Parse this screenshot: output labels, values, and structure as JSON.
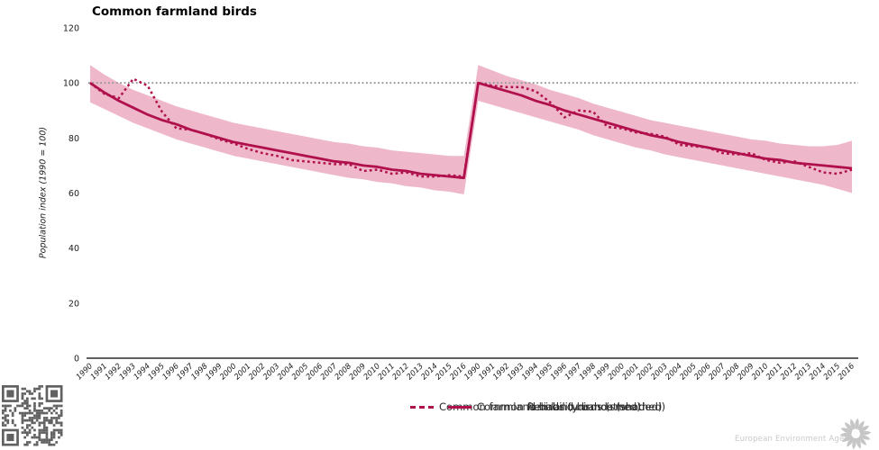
{
  "chart_data": {
    "type": "line",
    "title": "Common farmland birds",
    "xlabel": "",
    "ylabel": "Population index (1990 = 100)",
    "ylim": [
      0,
      120
    ],
    "yticks": [
      0,
      20,
      40,
      60,
      80,
      100,
      120
    ],
    "reference_line": 100,
    "grid": "reference-line-only",
    "legend_position": "bottom-center-overlapping",
    "panels": 2,
    "categories": [
      "1990",
      "1991",
      "1992",
      "1993",
      "1994",
      "1995",
      "1996",
      "1997",
      "1998",
      "1999",
      "2000",
      "2001",
      "2002",
      "2003",
      "2004",
      "2005",
      "2006",
      "2007",
      "2008",
      "2009",
      "2010",
      "2011",
      "2012",
      "2013",
      "2014",
      "2015",
      "2016"
    ],
    "series": [
      {
        "name": "Reliability bands (shaded)",
        "style": "band",
        "color": "#efb8ca",
        "upper": [
          106.5,
          103,
          100,
          97.5,
          95.5,
          93.5,
          91.5,
          90,
          88.5,
          87,
          85.5,
          84.5,
          83.5,
          82.5,
          81.5,
          80.5,
          79.5,
          78.5,
          78,
          77,
          76.5,
          75.5,
          75,
          74.5,
          74,
          73.5,
          73.5,
          106.5,
          104.5,
          102.5,
          101,
          99.5,
          97.5,
          96,
          94.5,
          92.5,
          91,
          89.5,
          88,
          86.5,
          85.5,
          84.5,
          83.5,
          82.5,
          81.5,
          80.5,
          79.5,
          79,
          78,
          77.5,
          77,
          77,
          77.5,
          79
        ],
        "lower": [
          93,
          90.5,
          88,
          85.5,
          83.5,
          81.5,
          79.5,
          78,
          76.5,
          75,
          73.5,
          72.5,
          71.5,
          70.5,
          69.5,
          68.5,
          67.5,
          66.5,
          65.5,
          65,
          64,
          63.5,
          62.5,
          62,
          61,
          60.5,
          59.5,
          93.5,
          92,
          90.5,
          89,
          87.5,
          86,
          84.5,
          83,
          81,
          79.5,
          78,
          76.5,
          75.5,
          74,
          73,
          72,
          71,
          70,
          69,
          68,
          67,
          66,
          65,
          64,
          63,
          61.5,
          60
        ]
      },
      {
        "name": "Common farmland birds (smoothed)",
        "style": "solid",
        "color": "#b0104c",
        "values": [
          100,
          96.5,
          93.5,
          91,
          88.5,
          86.5,
          85,
          83,
          81.5,
          80,
          78.5,
          77.5,
          76.5,
          75.5,
          74.5,
          73.5,
          72.5,
          71.5,
          71,
          70,
          69.5,
          68.5,
          68,
          67,
          66.5,
          66,
          65.5,
          100,
          98.5,
          97,
          95.5,
          93.5,
          92,
          90,
          88.5,
          87,
          85.5,
          84,
          82.5,
          81,
          80,
          78.5,
          77.5,
          76.5,
          75.5,
          74.5,
          73.5,
          72.5,
          72,
          71,
          70.5,
          70,
          69.5,
          69
        ]
      },
      {
        "name": "Common farmland birds (unsmoothed)",
        "style": "dotted",
        "color": "#b0104c",
        "values": [
          100,
          96,
          94.5,
          101.5,
          99,
          89.5,
          83.5,
          83,
          81.5,
          79.5,
          78,
          76,
          74.5,
          73.5,
          72,
          71.5,
          71,
          70.5,
          70.5,
          68,
          68.5,
          67,
          67.5,
          66,
          66,
          66.5,
          66,
          100,
          99,
          98.5,
          98.5,
          97,
          93,
          87.5,
          90,
          89.5,
          84,
          83.5,
          82,
          81.5,
          80.5,
          77.5,
          77,
          76.5,
          74.5,
          74,
          74.5,
          72,
          71,
          71.5,
          69.5,
          67.5,
          67,
          68.5
        ]
      }
    ],
    "colors": {
      "line": "#b0104c",
      "band": "#efb8ca",
      "grid_dots": "#999999",
      "axis": "#000000"
    }
  },
  "legend": {
    "entries": [
      {
        "label": "Common farmland birds (unsmoothed)",
        "swatch": "dotted-line"
      },
      {
        "label": "Common farmland birds (smoothed)",
        "swatch": "solid-line"
      },
      {
        "label": "Reliability bands (shaded)",
        "swatch": "none"
      }
    ]
  },
  "footer": {
    "agency": "European Environment Agency"
  },
  "icons": {
    "bottom_left": "qr-code",
    "bottom_right": "eea-flower-logo"
  }
}
